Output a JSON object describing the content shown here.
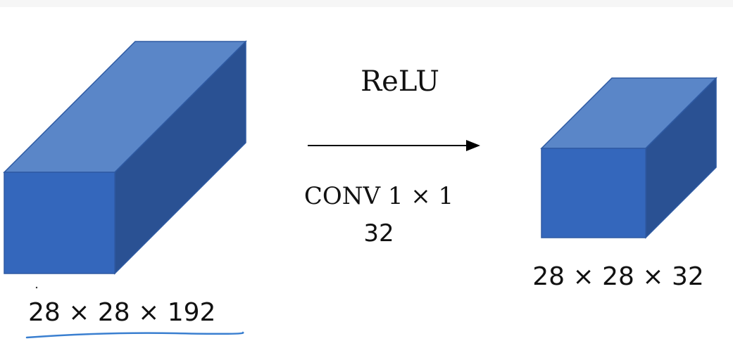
{
  "operation": {
    "activation": "ReLU",
    "conv_label": "CONV 1 × 1",
    "filters": "32"
  },
  "input_volume": {
    "dims_label": "28 × 28 × 192"
  },
  "output_volume": {
    "dims_label": "28 × 28 × 32"
  },
  "colors": {
    "cube_front": "#3467bc",
    "cube_top": "#5a86c8",
    "cube_side": "#2a5193",
    "cube_edge": "#2e5aa3",
    "arrow": "#000000",
    "underline": "#3a7fd0"
  }
}
